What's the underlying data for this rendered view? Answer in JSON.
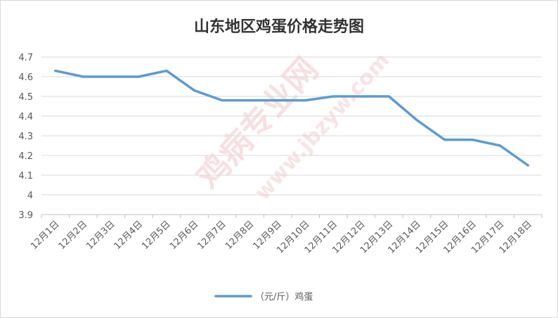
{
  "chart_data": {
    "type": "line",
    "title": "山东地区鸡蛋价格走势图",
    "categories": [
      "12月1日",
      "12月2日",
      "12月3日",
      "12月4日",
      "12月5日",
      "12月6日",
      "12月7日",
      "12月8日",
      "12月9日",
      "12月10日",
      "12月11日",
      "12月12日",
      "12月13日",
      "12月14日",
      "12月15日",
      "12月16日",
      "12月17日",
      "12月18日"
    ],
    "series": [
      {
        "name": "（元/斤）鸡蛋",
        "color": "#5b9bd5",
        "values": [
          4.63,
          4.6,
          4.6,
          4.6,
          4.63,
          4.53,
          4.48,
          4.48,
          4.48,
          4.48,
          4.5,
          4.5,
          4.5,
          4.38,
          4.28,
          4.28,
          4.25,
          4.15
        ]
      }
    ],
    "ylim": [
      3.9,
      4.7
    ],
    "yticks": [
      "3.9",
      "4",
      "4.1",
      "4.2",
      "4.3",
      "4.4",
      "4.5",
      "4.6",
      "4.7"
    ],
    "grid": true,
    "legend": "bottom",
    "xlabel": "",
    "ylabel": ""
  },
  "colors": {
    "grid": "#d9d9d9",
    "axis": "#bfbfbf",
    "watermark": "#f4c7c7"
  },
  "watermark": {
    "text_cn": "鸡病专业网",
    "text_url": "www.jbzyw.com"
  }
}
